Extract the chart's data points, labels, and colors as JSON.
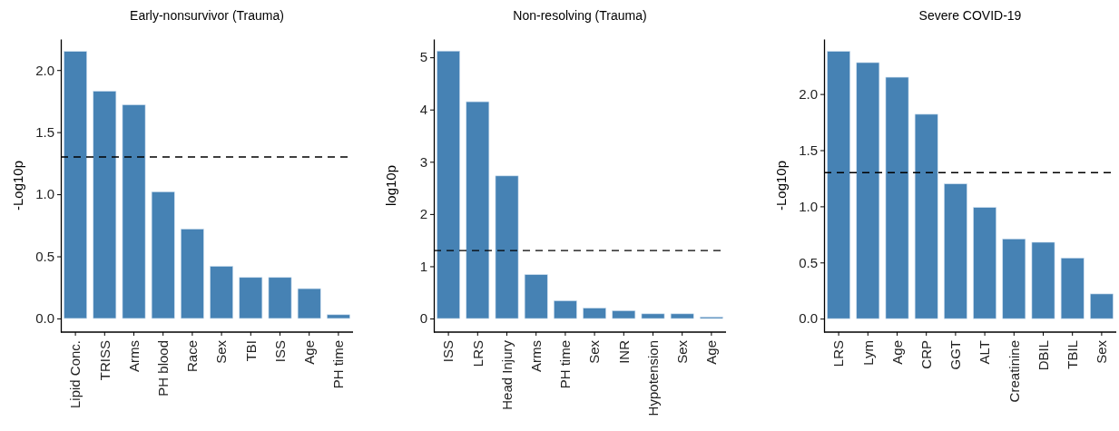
{
  "chart_data": [
    {
      "type": "bar",
      "title": "Early-nonsurvivor (Trauma)",
      "ylabel": "-Log10p",
      "categories": [
        "Lipid Conc.",
        "TRISS",
        "Arms",
        "PH blood",
        "Race",
        "Sex",
        "TBI",
        "ISS",
        "Age",
        "PH time"
      ],
      "values": [
        2.15,
        1.83,
        1.72,
        1.02,
        0.72,
        0.42,
        0.33,
        0.33,
        0.24,
        0.03
      ],
      "color": "#4682b4",
      "ylim": [
        -0.11,
        2.25
      ],
      "yticks": [
        {
          "value": 0,
          "label": "0.0"
        },
        {
          "value": 0.5,
          "label": "0.5"
        },
        {
          "value": 1,
          "label": "1.0"
        },
        {
          "value": 1.5,
          "label": "1.5"
        },
        {
          "value": 2,
          "label": "2.0"
        }
      ],
      "ref_lines": [
        {
          "axis": "y",
          "value": 1.3,
          "line_style": "dashed"
        }
      ],
      "grid": false
    },
    {
      "type": "bar",
      "title": "Non-resolving (Trauma)",
      "ylabel": "log10p",
      "categories": [
        "ISS",
        "LRS",
        "Head Injury",
        "Arms",
        "PH time",
        "Sex",
        "INR",
        "Hypotension",
        "Sex",
        "Age"
      ],
      "values": [
        5.12,
        4.15,
        2.73,
        0.84,
        0.34,
        0.2,
        0.15,
        0.09,
        0.09,
        0.03
      ],
      "color": "#4682b4",
      "ylim": [
        -0.26,
        5.35
      ],
      "yticks": [
        0,
        1,
        2,
        3,
        4,
        5
      ],
      "ref_lines": [
        {
          "axis": "y",
          "value": 1.3,
          "line_style": "dashed"
        }
      ],
      "grid": false
    },
    {
      "type": "bar",
      "title": "Severe COVID-19",
      "ylabel": "-Log10p",
      "categories": [
        "LRS",
        "Lym",
        "Age",
        "CRP",
        "GGT",
        "ALT",
        "Creatinine",
        "DBIL",
        "TBIL",
        "Sex"
      ],
      "values": [
        2.38,
        2.28,
        2.15,
        1.82,
        1.2,
        0.99,
        0.71,
        0.68,
        0.54,
        0.22
      ],
      "color": "#4682b4",
      "ylim": [
        -0.12,
        2.49
      ],
      "yticks": [
        {
          "value": 0,
          "label": "0.0"
        },
        {
          "value": 0.5,
          "label": "0.5"
        },
        {
          "value": 1,
          "label": "1.0"
        },
        {
          "value": 1.5,
          "label": "1.5"
        },
        {
          "value": 2,
          "label": "2.0"
        }
      ],
      "ref_lines": [
        {
          "axis": "y",
          "value": 1.3,
          "line_style": "dashed"
        }
      ],
      "grid": false
    }
  ]
}
